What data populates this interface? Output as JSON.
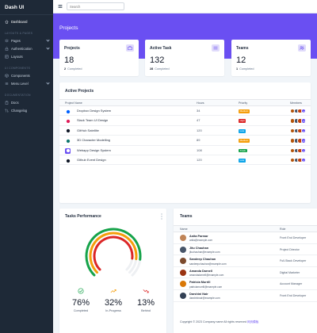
{
  "brand": "Dash UI",
  "sidebar": {
    "dashboard": "Dashboard",
    "sections": [
      "Layouts & Pages",
      "UI Components",
      "Documentation"
    ],
    "pages": "Pages",
    "authentication": "Authentication",
    "layouts": "Layouts",
    "components": "Components",
    "menu_level": "Menu Level",
    "docs": "Docs",
    "changelog": "Changelog"
  },
  "search": {
    "placeholder": "Search"
  },
  "page_title": "Projects",
  "stats": [
    {
      "title": "Projects",
      "value": "18",
      "count": "2",
      "suffix": "Completed"
    },
    {
      "title": "Active Task",
      "value": "132",
      "count": "28",
      "suffix": "Completed"
    },
    {
      "title": "Teams",
      "value": "12",
      "count": "1",
      "suffix": "Completed"
    }
  ],
  "active_projects": {
    "title": "Active Projects",
    "columns": [
      "Project Name",
      "Hours",
      "Priority",
      "Members"
    ],
    "rows": [
      {
        "name": "Dropbox Design System",
        "hours": "34",
        "priority": "Medium",
        "priority_color": "#f59e0b",
        "icon_color": "#0061ff",
        "more": "+5"
      },
      {
        "name": "Slack Team UI Design",
        "hours": "47",
        "priority": "High",
        "priority_color": "#dc2626",
        "icon_color": "#e01e5a",
        "more": "+5"
      },
      {
        "name": "GitHub Satellite",
        "hours": "120",
        "priority": "Low",
        "priority_color": "#0ea5e9",
        "icon_color": "#111827",
        "more": "+1"
      },
      {
        "name": "3D Character Modelling",
        "hours": "89",
        "priority": "Medium",
        "priority_color": "#f59e0b",
        "icon_color": "#0f766e",
        "more": "+5"
      },
      {
        "name": "Webapp Design System",
        "hours": "108",
        "priority": "Track",
        "priority_color": "#16a34a",
        "icon_color": "#6a4ff2",
        "more": "+5"
      },
      {
        "name": "Github Event Design",
        "hours": "120",
        "priority": "Low",
        "priority_color": "#0ea5e9",
        "icon_color": "#111827",
        "more": "+1"
      }
    ],
    "view_all": "View All Projects"
  },
  "tasks": {
    "title": "Tasks Performance",
    "items": [
      {
        "value": "76%",
        "label": "Completed",
        "color": "#16a34a"
      },
      {
        "value": "32%",
        "label": "In-Progress",
        "color": "#f59e0b"
      },
      {
        "value": "13%",
        "label": "Behind",
        "color": "#dc2626"
      }
    ]
  },
  "teams": {
    "title": "Teams",
    "columns": [
      "Name",
      "Role"
    ],
    "rows": [
      {
        "name": "Anita Parmar",
        "email": "anita@example.com",
        "role": "Front End Developer",
        "color": "#c08457"
      },
      {
        "name": "Jitu Chauhan",
        "email": "jituchauhan@example.com",
        "role": "Project Director",
        "color": "#475569"
      },
      {
        "name": "Sandeep Chauhan",
        "email": "sandeepchauhan@example.com",
        "role": "Full-Stack Developer",
        "color": "#7c4a2d"
      },
      {
        "name": "Amanda Darnell",
        "email": "amandadarnell@example.com",
        "role": "Digital Marketer",
        "color": "#9a3412"
      },
      {
        "name": "Patricia Murrill",
        "email": "patriciamurrill@example.com",
        "role": "Account Manager",
        "color": "#d97706"
      },
      {
        "name": "Darshini Nair",
        "email": "darshininair@example.com",
        "role": "Front End Developer",
        "color": "#334155"
      }
    ]
  },
  "footer": {
    "text": "Copyright © 2023 Company name All rights reserved",
    "link": "网页模板"
  }
}
